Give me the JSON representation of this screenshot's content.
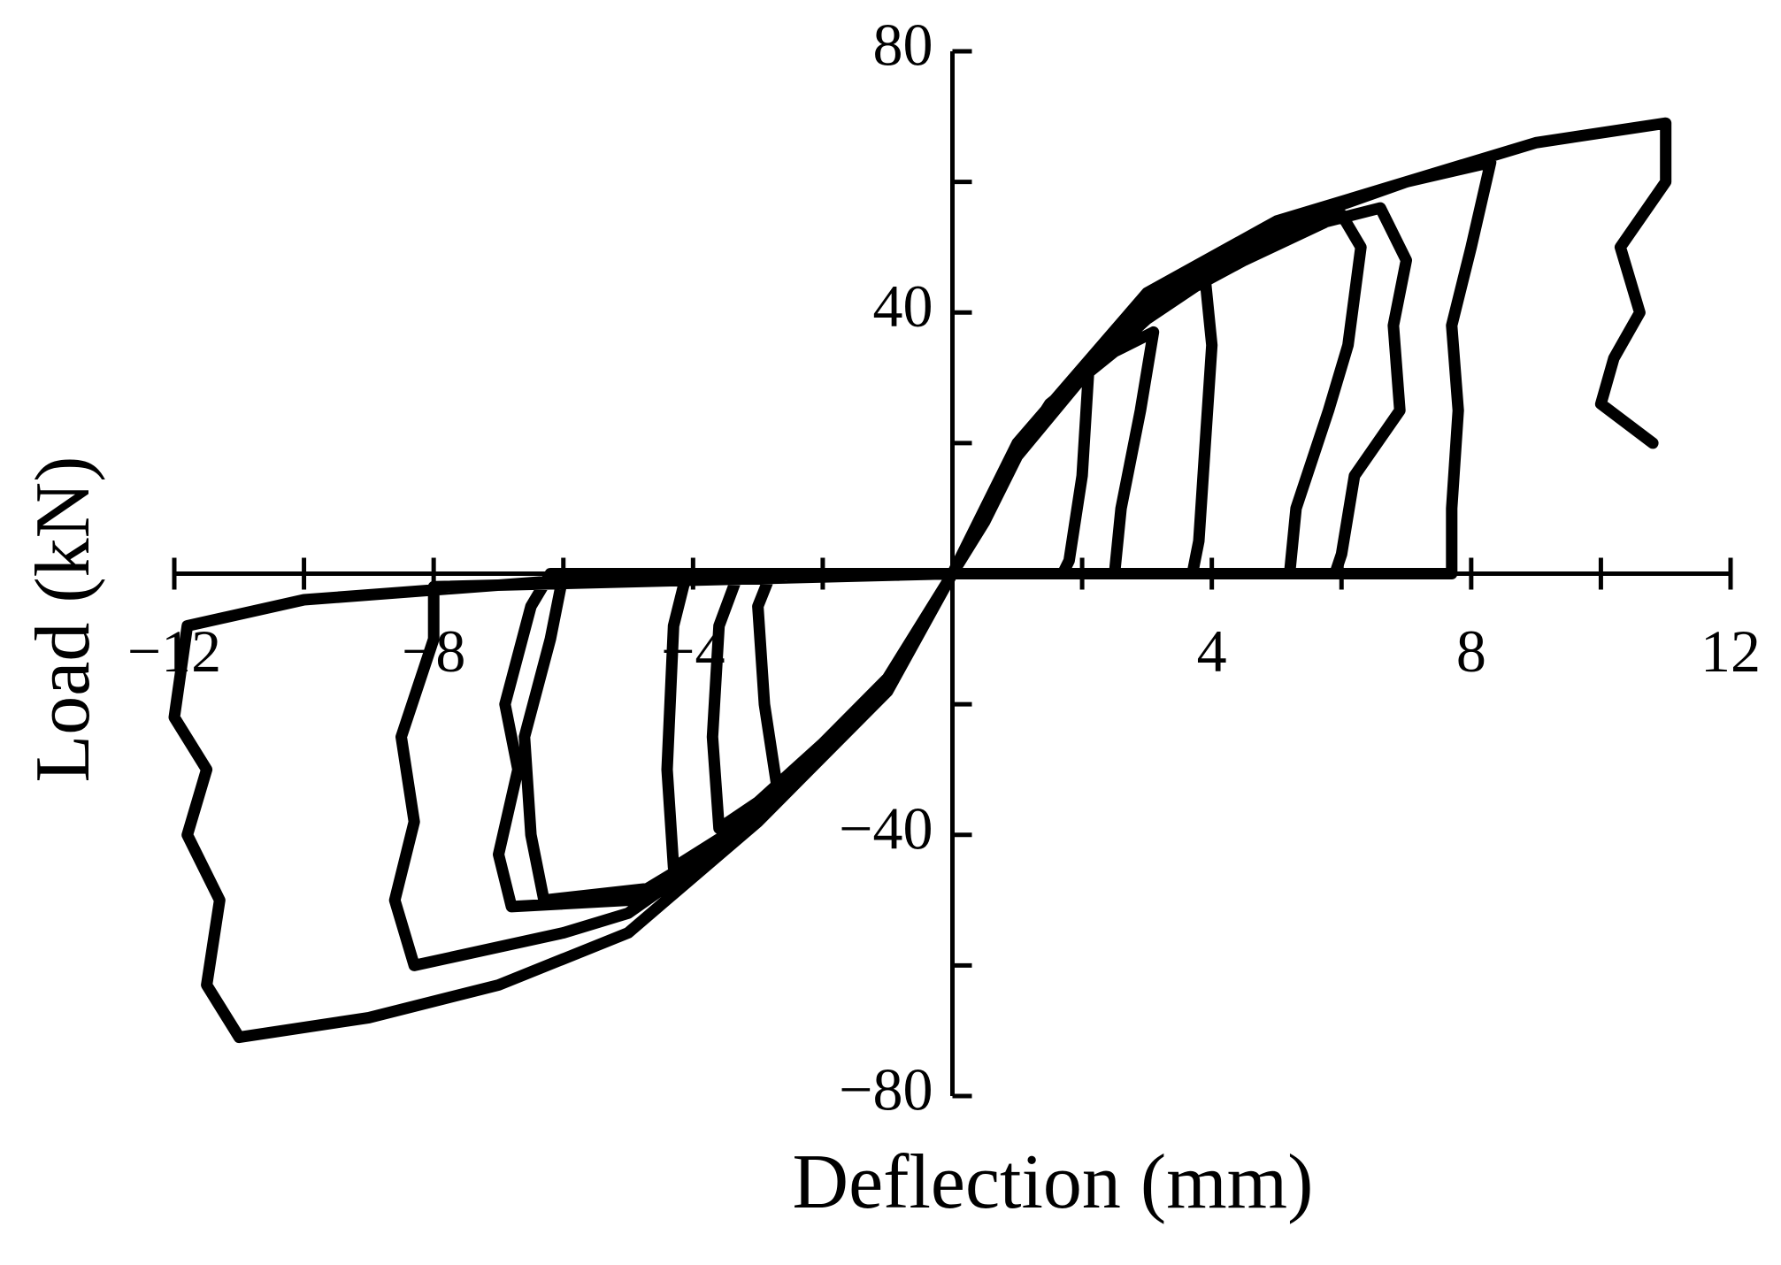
{
  "chart_data": {
    "type": "line",
    "x_label": "Deflection (mm)",
    "y_label": "Load (kN)",
    "color": "#000000",
    "xlim": [
      -12,
      12
    ],
    "ylim": [
      -80,
      80
    ],
    "xticks": [
      {
        "value": -12,
        "label": "−12"
      },
      {
        "value": -8,
        "label": "−8"
      },
      {
        "value": -4,
        "label": "−4"
      },
      4,
      8,
      12
    ],
    "xminorticks": [
      -10,
      -6,
      -2,
      2,
      6,
      10
    ],
    "yticks": [
      {
        "value": -80,
        "label": "−80"
      },
      {
        "value": -40,
        "label": "−40"
      },
      40,
      80
    ],
    "yminorticks": [
      -60,
      -20,
      20,
      60
    ],
    "x": [
      0,
      0.5,
      1,
      1.6,
      2.1,
      2.0,
      1.8,
      1.7,
      0.5,
      0,
      -0.5,
      -1,
      -2,
      -2.7,
      -2.9,
      -3.0,
      -2.8,
      -1,
      0,
      0.6,
      1.5,
      2.5,
      3.1,
      2.9,
      2.6,
      2.5,
      1,
      0,
      -1,
      -2,
      -3,
      -3.6,
      -3.7,
      -3.6,
      -3.3,
      -1,
      0,
      1,
      2,
      3,
      3.9,
      4.0,
      3.9,
      3.8,
      3.7,
      1.5,
      0,
      -1,
      -2.5,
      -3.5,
      -4.3,
      -4.4,
      -4.3,
      -4.1,
      -1,
      0,
      1,
      3,
      4.5,
      6,
      6.3,
      6.1,
      5.8,
      5.3,
      5.2,
      2,
      0,
      -1,
      -3,
      -4.5,
      -6.3,
      -6.5,
      -6.6,
      -6.2,
      -6,
      -2,
      0,
      1,
      3,
      5,
      6.6,
      7,
      6.8,
      6.9,
      6.2,
      6,
      5.9,
      2,
      0,
      -1,
      -3,
      -5,
      -6.8,
      -7,
      -6.7,
      -6.9,
      -6.5,
      -6.2,
      -2,
      0,
      1,
      3,
      5,
      7,
      8.3,
      8.0,
      7.7,
      7.8,
      7.7,
      7.7,
      3,
      0,
      -1,
      -3,
      -5,
      -6,
      -8.3,
      -8.6,
      -8.3,
      -8.5,
      -8.0,
      -8,
      -4,
      0,
      -1,
      -3,
      -5,
      -7,
      -9,
      -11,
      -11.5,
      -11.3,
      -11.8,
      -11.5,
      -12,
      -11.8,
      -10,
      -6,
      -2,
      0,
      1,
      3,
      5,
      7,
      9,
      11,
      11,
      10.3,
      10.6,
      10.2,
      10,
      10.8
    ],
    "values": [
      0,
      8,
      18,
      26,
      31,
      15,
      2,
      0,
      0,
      0,
      -8,
      -18,
      -27,
      -33,
      -20,
      -5,
      0,
      0,
      0,
      12,
      26,
      34,
      37,
      25,
      10,
      0,
      0,
      0,
      -16,
      -26,
      -35,
      -39,
      -25,
      -8,
      0,
      0,
      0,
      18,
      30,
      39,
      45,
      35,
      20,
      5,
      0,
      0,
      0,
      -18,
      -32,
      -40,
      -45,
      -30,
      -8,
      0,
      0,
      0,
      20,
      40,
      48,
      55,
      50,
      35,
      25,
      10,
      0,
      0,
      0,
      -18,
      -37,
      -48,
      -50,
      -40,
      -25,
      -10,
      0,
      0,
      0,
      20,
      41,
      52,
      56,
      48,
      38,
      25,
      15,
      3,
      0,
      0,
      0,
      -18,
      -38,
      -50,
      -51,
      -43,
      -30,
      -20,
      -5,
      0,
      0,
      0,
      20,
      42,
      53,
      60,
      63,
      50,
      38,
      25,
      10,
      0,
      0,
      0,
      -18,
      -38,
      -52,
      -55,
      -60,
      -50,
      -38,
      -25,
      -10,
      -2,
      -1,
      0,
      -18,
      -38,
      -55,
      -63,
      -68,
      -71,
      -63,
      -50,
      -40,
      -30,
      -22,
      -8,
      -4,
      -1,
      0,
      0,
      20,
      43,
      54,
      60,
      66,
      69,
      60,
      50,
      40,
      33,
      26,
      20
    ]
  }
}
